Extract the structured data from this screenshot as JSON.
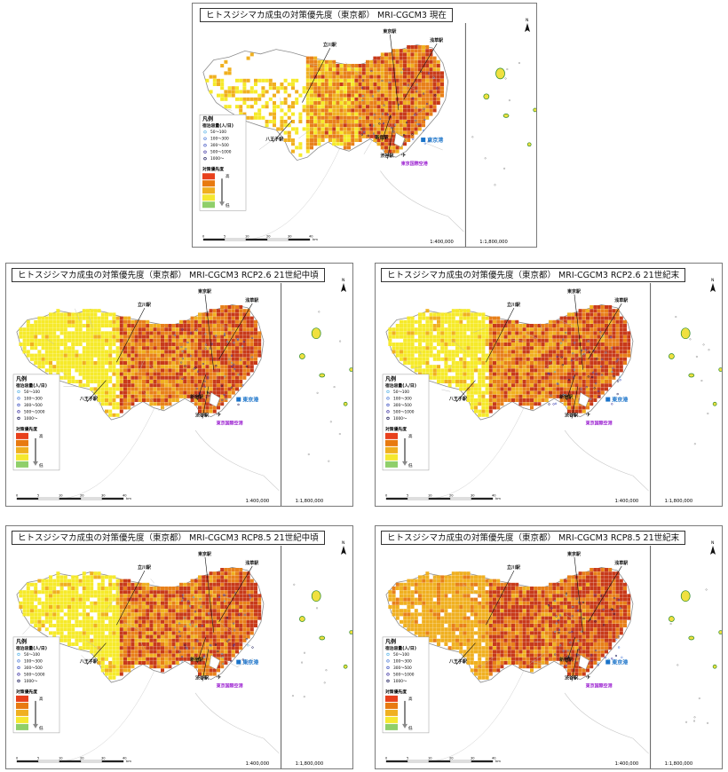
{
  "panels": [
    {
      "id": "p0",
      "title": "ヒトスジシマカ成虫の対策優先度（東京都） MRI-CGCM3 現在",
      "level": 0.0
    },
    {
      "id": "p1",
      "title": "ヒトスジシマカ成虫の対策優先度（東京都） MRI-CGCM3 RCP2.6 21世紀中頃",
      "level": 0.55
    },
    {
      "id": "p2",
      "title": "ヒトスジシマカ成虫の対策優先度（東京都） MRI-CGCM3 RCP2.6 21世紀末",
      "level": 0.5
    },
    {
      "id": "p3",
      "title": "ヒトスジシマカ成虫の対策優先度（東京都） MRI-CGCM3 RCP8.5 21世紀中頃",
      "level": 0.6
    },
    {
      "id": "p4",
      "title": "ヒトスジシマカ成虫の対策優先度（東京都） MRI-CGCM3 RCP8.5 21世紀末",
      "level": 0.95
    }
  ],
  "stations": {
    "tachikawa": "立川駅",
    "tokyo": "東京駅",
    "asakusa": "浅草駅",
    "shinjuku": "新宿駅",
    "shibuya": "渋谷駅",
    "hachioji": "八王子駅",
    "tokyo_port": "東京港",
    "haneda": "東京国際空港"
  },
  "legend": {
    "title": "凡例",
    "capacity_title": "宿泊容量(人/日)",
    "capacity_items": [
      "50～100",
      "100～300",
      "300～500",
      "500～1000",
      "1000～"
    ],
    "capacity_colors": [
      "#5ab4e8",
      "#4a78d8",
      "#3b4fc0",
      "#3a2fa0",
      "#101050"
    ],
    "priority_title": "対策優先度",
    "priority_colors": [
      "#e8401c",
      "#e87a10",
      "#f0b020",
      "#f5e830",
      "#8fcf6a"
    ],
    "high": "高",
    "low": "低"
  },
  "scales": {
    "main": "1:400,000",
    "inset": "1:1,800,000",
    "bar_ticks": [
      "0",
      "5",
      "10",
      "20",
      "30",
      "40"
    ],
    "bar_unit": "km"
  },
  "north_label": "N",
  "colors": {
    "high": "#c83a1a",
    "orange": "#e8801a",
    "amber": "#f0b020",
    "yellow": "#f6ea2a",
    "white": "#ffffff",
    "border": "#9aa0a8",
    "sea": "#ffffff"
  }
}
